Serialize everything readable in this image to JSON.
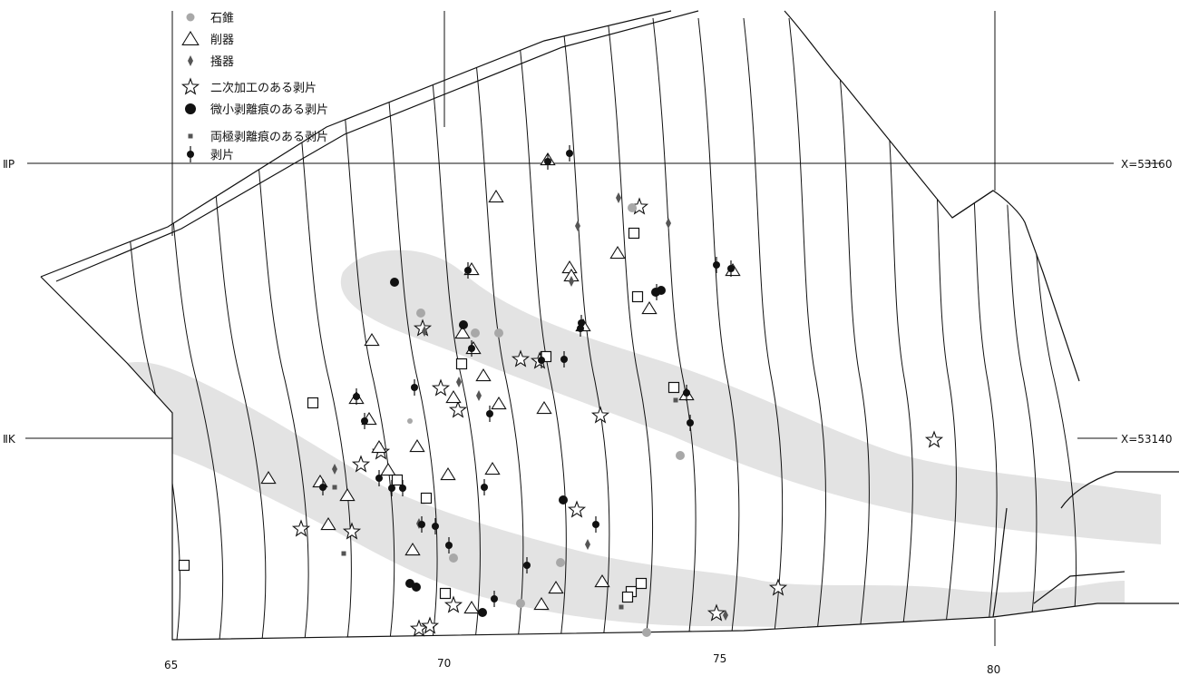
{
  "legend": [
    {
      "key": "stone_drill",
      "label": "石錐",
      "symbol": "gray-dot-icon"
    },
    {
      "key": "scraper_side",
      "label": "削器",
      "symbol": "triangle-icon"
    },
    {
      "key": "scraper_end",
      "label": "掻器",
      "symbol": "diamond-icon"
    },
    {
      "key": "retouched_flake",
      "label": "二次加工のある剥片",
      "symbol": "star-icon"
    },
    {
      "key": "microflaked_flake",
      "label": "微小剥離痕のある剥片",
      "symbol": "black-dot-icon"
    },
    {
      "key": "bipolar_flake",
      "label": "両極剥離痕のある剥片",
      "symbol": "small-square-icon"
    },
    {
      "key": "flake",
      "label": "剥片",
      "symbol": "dot-stem-icon"
    }
  ],
  "axes": {
    "x_ticks": [
      "65",
      "70",
      "75",
      "80"
    ],
    "grid_labels_left": [
      "ⅡP",
      "ⅡK"
    ],
    "grid_labels_right": [
      "X=53160",
      "X=53140"
    ]
  },
  "colors": {
    "line": "#111111",
    "shading": "#e3e3e3",
    "gray_marker": "#a8a8a8",
    "dark_marker": "#555555"
  },
  "unlabeled_square_symbol": "open-square-icon"
}
